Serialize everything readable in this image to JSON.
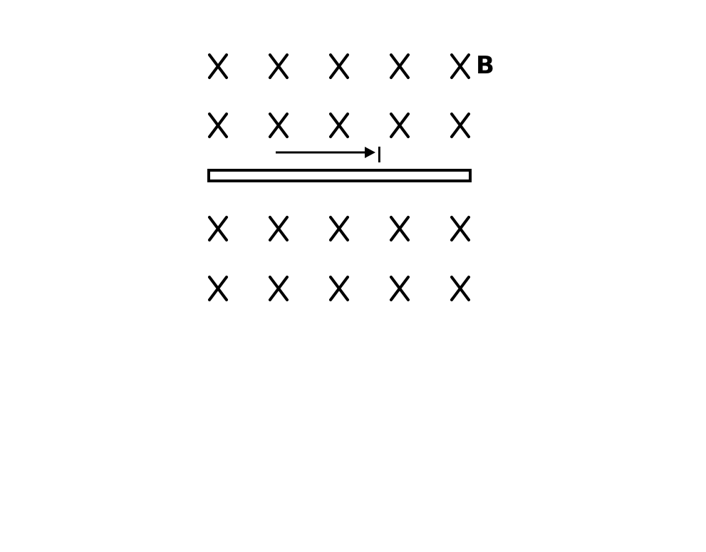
{
  "labels": {
    "field": "B",
    "current": "I"
  },
  "field_symbol": "X",
  "colors": {
    "ink": "#000000",
    "background": "#ffffff"
  }
}
